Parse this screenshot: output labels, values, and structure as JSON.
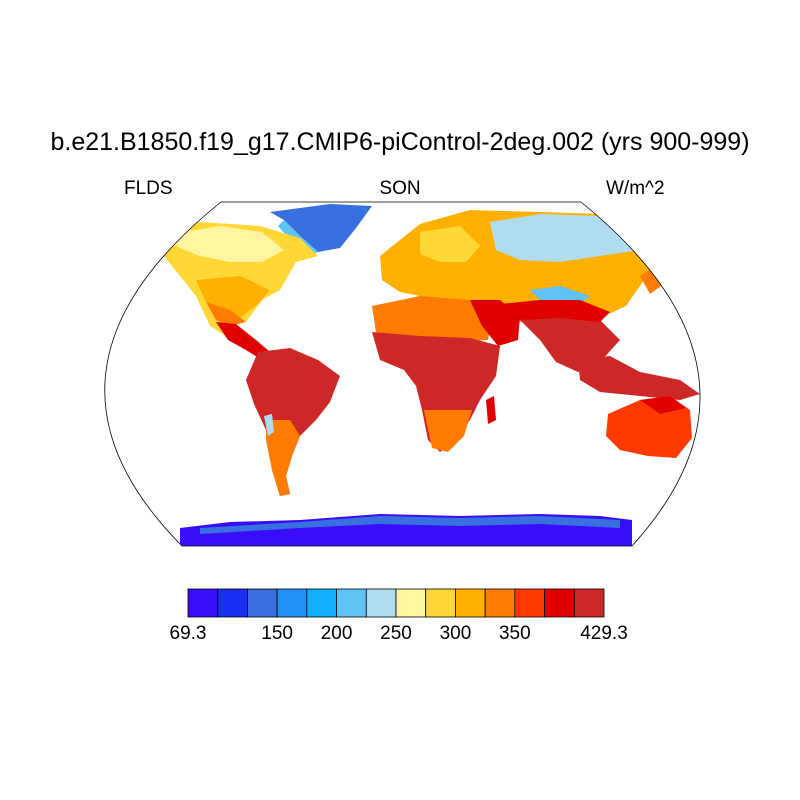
{
  "title": "b.e21.B1850.f19_g17.CMIP6-piControl-2deg.002 (yrs 900-999)",
  "left_label": "FLDS",
  "center_label": "SON",
  "right_label": "W/m^2",
  "colorbar": {
    "colors": [
      "#3a0dfa",
      "#1a30f0",
      "#3870e0",
      "#2490f5",
      "#10b0ff",
      "#5ec4f5",
      "#b0dcf0",
      "#fff4a0",
      "#ffd838",
      "#ffb000",
      "#ff7c00",
      "#ff3a00",
      "#e00000",
      "#cc2828"
    ],
    "tick_labels": [
      "69.3",
      "150",
      "200",
      "250",
      "300",
      "350",
      "429.3"
    ]
  },
  "colors": {
    "ocean": "#ffffff",
    "coast": "#000000"
  }
}
